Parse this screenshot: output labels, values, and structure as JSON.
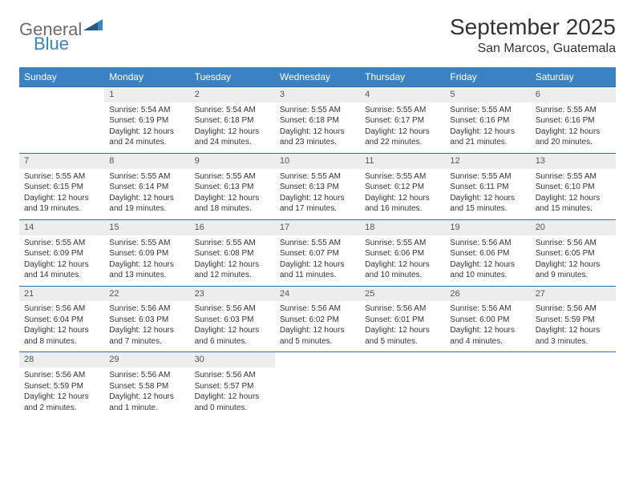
{
  "logo": {
    "text_general": "General",
    "text_blue": "Blue",
    "color_gray": "#6b6b6b",
    "color_blue": "#3b82c4"
  },
  "title": {
    "month_year": "September 2025",
    "location": "San Marcos, Guatemala",
    "title_fontsize": 28,
    "location_fontsize": 16
  },
  "styling": {
    "header_bg": "#3b82c4",
    "header_fg": "#ffffff",
    "daynum_bg": "#eceded",
    "row_divider": "#2e6fa3",
    "page_bg": "#ffffff",
    "text_color": "#333333",
    "body_fontsize": 10,
    "header_fontsize": 12
  },
  "weekdays": [
    "Sunday",
    "Monday",
    "Tuesday",
    "Wednesday",
    "Thursday",
    "Friday",
    "Saturday"
  ],
  "weeks": [
    {
      "nums": [
        "",
        "1",
        "2",
        "3",
        "4",
        "5",
        "6"
      ],
      "cells": [
        {
          "empty": true
        },
        {
          "sunrise": "Sunrise: 5:54 AM",
          "sunset": "Sunset: 6:19 PM",
          "daylight": "Daylight: 12 hours and 24 minutes."
        },
        {
          "sunrise": "Sunrise: 5:54 AM",
          "sunset": "Sunset: 6:18 PM",
          "daylight": "Daylight: 12 hours and 24 minutes."
        },
        {
          "sunrise": "Sunrise: 5:55 AM",
          "sunset": "Sunset: 6:18 PM",
          "daylight": "Daylight: 12 hours and 23 minutes."
        },
        {
          "sunrise": "Sunrise: 5:55 AM",
          "sunset": "Sunset: 6:17 PM",
          "daylight": "Daylight: 12 hours and 22 minutes."
        },
        {
          "sunrise": "Sunrise: 5:55 AM",
          "sunset": "Sunset: 6:16 PM",
          "daylight": "Daylight: 12 hours and 21 minutes."
        },
        {
          "sunrise": "Sunrise: 5:55 AM",
          "sunset": "Sunset: 6:16 PM",
          "daylight": "Daylight: 12 hours and 20 minutes."
        }
      ]
    },
    {
      "nums": [
        "7",
        "8",
        "9",
        "10",
        "11",
        "12",
        "13"
      ],
      "cells": [
        {
          "sunrise": "Sunrise: 5:55 AM",
          "sunset": "Sunset: 6:15 PM",
          "daylight": "Daylight: 12 hours and 19 minutes."
        },
        {
          "sunrise": "Sunrise: 5:55 AM",
          "sunset": "Sunset: 6:14 PM",
          "daylight": "Daylight: 12 hours and 19 minutes."
        },
        {
          "sunrise": "Sunrise: 5:55 AM",
          "sunset": "Sunset: 6:13 PM",
          "daylight": "Daylight: 12 hours and 18 minutes."
        },
        {
          "sunrise": "Sunrise: 5:55 AM",
          "sunset": "Sunset: 6:13 PM",
          "daylight": "Daylight: 12 hours and 17 minutes."
        },
        {
          "sunrise": "Sunrise: 5:55 AM",
          "sunset": "Sunset: 6:12 PM",
          "daylight": "Daylight: 12 hours and 16 minutes."
        },
        {
          "sunrise": "Sunrise: 5:55 AM",
          "sunset": "Sunset: 6:11 PM",
          "daylight": "Daylight: 12 hours and 15 minutes."
        },
        {
          "sunrise": "Sunrise: 5:55 AM",
          "sunset": "Sunset: 6:10 PM",
          "daylight": "Daylight: 12 hours and 15 minutes."
        }
      ]
    },
    {
      "nums": [
        "14",
        "15",
        "16",
        "17",
        "18",
        "19",
        "20"
      ],
      "cells": [
        {
          "sunrise": "Sunrise: 5:55 AM",
          "sunset": "Sunset: 6:09 PM",
          "daylight": "Daylight: 12 hours and 14 minutes."
        },
        {
          "sunrise": "Sunrise: 5:55 AM",
          "sunset": "Sunset: 6:09 PM",
          "daylight": "Daylight: 12 hours and 13 minutes."
        },
        {
          "sunrise": "Sunrise: 5:55 AM",
          "sunset": "Sunset: 6:08 PM",
          "daylight": "Daylight: 12 hours and 12 minutes."
        },
        {
          "sunrise": "Sunrise: 5:55 AM",
          "sunset": "Sunset: 6:07 PM",
          "daylight": "Daylight: 12 hours and 11 minutes."
        },
        {
          "sunrise": "Sunrise: 5:55 AM",
          "sunset": "Sunset: 6:06 PM",
          "daylight": "Daylight: 12 hours and 10 minutes."
        },
        {
          "sunrise": "Sunrise: 5:56 AM",
          "sunset": "Sunset: 6:06 PM",
          "daylight": "Daylight: 12 hours and 10 minutes."
        },
        {
          "sunrise": "Sunrise: 5:56 AM",
          "sunset": "Sunset: 6:05 PM",
          "daylight": "Daylight: 12 hours and 9 minutes."
        }
      ]
    },
    {
      "nums": [
        "21",
        "22",
        "23",
        "24",
        "25",
        "26",
        "27"
      ],
      "cells": [
        {
          "sunrise": "Sunrise: 5:56 AM",
          "sunset": "Sunset: 6:04 PM",
          "daylight": "Daylight: 12 hours and 8 minutes."
        },
        {
          "sunrise": "Sunrise: 5:56 AM",
          "sunset": "Sunset: 6:03 PM",
          "daylight": "Daylight: 12 hours and 7 minutes."
        },
        {
          "sunrise": "Sunrise: 5:56 AM",
          "sunset": "Sunset: 6:03 PM",
          "daylight": "Daylight: 12 hours and 6 minutes."
        },
        {
          "sunrise": "Sunrise: 5:56 AM",
          "sunset": "Sunset: 6:02 PM",
          "daylight": "Daylight: 12 hours and 5 minutes."
        },
        {
          "sunrise": "Sunrise: 5:56 AM",
          "sunset": "Sunset: 6:01 PM",
          "daylight": "Daylight: 12 hours and 5 minutes."
        },
        {
          "sunrise": "Sunrise: 5:56 AM",
          "sunset": "Sunset: 6:00 PM",
          "daylight": "Daylight: 12 hours and 4 minutes."
        },
        {
          "sunrise": "Sunrise: 5:56 AM",
          "sunset": "Sunset: 5:59 PM",
          "daylight": "Daylight: 12 hours and 3 minutes."
        }
      ]
    },
    {
      "nums": [
        "28",
        "29",
        "30",
        "",
        "",
        "",
        ""
      ],
      "cells": [
        {
          "sunrise": "Sunrise: 5:56 AM",
          "sunset": "Sunset: 5:59 PM",
          "daylight": "Daylight: 12 hours and 2 minutes."
        },
        {
          "sunrise": "Sunrise: 5:56 AM",
          "sunset": "Sunset: 5:58 PM",
          "daylight": "Daylight: 12 hours and 1 minute."
        },
        {
          "sunrise": "Sunrise: 5:56 AM",
          "sunset": "Sunset: 5:57 PM",
          "daylight": "Daylight: 12 hours and 0 minutes."
        },
        {
          "empty": true
        },
        {
          "empty": true
        },
        {
          "empty": true
        },
        {
          "empty": true
        }
      ]
    }
  ]
}
